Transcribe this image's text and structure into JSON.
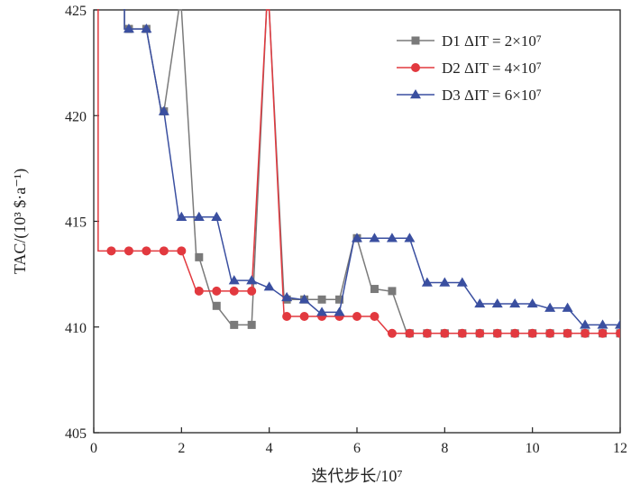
{
  "chart_data": {
    "type": "line",
    "title": "",
    "xlabel": "迭代步长/10⁷",
    "ylabel": "TAC/(10³ $·a⁻¹)",
    "xlim": [
      0,
      12
    ],
    "ylim": [
      405,
      425
    ],
    "xticks": [
      "0",
      "2",
      "4",
      "6",
      "8",
      "10",
      "12"
    ],
    "yticks": [
      "405",
      "410",
      "415",
      "420",
      "425"
    ],
    "legend_position": "top-right",
    "grid": false,
    "series": [
      {
        "name": "D1 ΔIT = 2×10⁷",
        "color": "#7a7a7a",
        "marker": "square",
        "x": [
          0.8,
          1.2,
          1.6,
          2.0,
          2.4,
          2.8,
          3.2,
          3.6,
          4.0,
          4.4,
          4.8,
          5.2,
          5.6,
          6.0,
          6.4,
          6.8,
          7.2,
          7.6,
          8.0,
          8.4,
          8.8,
          9.2,
          9.6,
          10.0,
          10.4,
          10.8,
          11.2,
          11.6,
          12.0
        ],
        "y": [
          424.1,
          424.1,
          420.2,
          425.0,
          413.3,
          411.0,
          410.1,
          410.1,
          425.0,
          411.3,
          411.3,
          411.3,
          411.3,
          414.2,
          411.8,
          411.7,
          409.7,
          409.7,
          409.7,
          409.7,
          409.7,
          409.7,
          409.7,
          409.7,
          409.7,
          409.7,
          409.7,
          409.7,
          409.7
        ]
      },
      {
        "name": "D2 ΔIT = 4×10⁷",
        "color": "#e2393f",
        "marker": "circle",
        "x": [
          0.4,
          0.8,
          1.2,
          1.6,
          2.0,
          2.4,
          2.8,
          3.2,
          3.6,
          4.0,
          4.4,
          4.8,
          5.2,
          5.6,
          6.0,
          6.4,
          6.8,
          7.2,
          7.6,
          8.0,
          8.4,
          8.8,
          9.2,
          9.6,
          10.0,
          10.4,
          10.8,
          11.2,
          11.6,
          12.0
        ],
        "y": [
          413.6,
          413.6,
          413.6,
          413.6,
          413.6,
          411.7,
          411.7,
          411.7,
          411.7,
          425.0,
          410.5,
          410.5,
          410.5,
          410.5,
          410.5,
          410.5,
          409.7,
          409.7,
          409.7,
          409.7,
          409.7,
          409.7,
          409.7,
          409.7,
          409.7,
          409.7,
          409.7,
          409.7,
          409.7,
          409.7
        ]
      },
      {
        "name": "D3 ΔIT = 6×10⁷",
        "color": "#3a4fa0",
        "marker": "triangle",
        "x": [
          0.8,
          1.2,
          1.6,
          2.0,
          2.4,
          2.8,
          3.2,
          3.6,
          4.0,
          4.4,
          4.8,
          5.2,
          5.6,
          6.0,
          6.4,
          6.8,
          7.2,
          7.6,
          8.0,
          8.4,
          8.8,
          9.2,
          9.6,
          10.0,
          10.4,
          10.8,
          11.2,
          11.6,
          12.0
        ],
        "y": [
          424.1,
          424.1,
          420.2,
          415.2,
          415.2,
          415.2,
          412.2,
          412.2,
          411.9,
          411.4,
          411.3,
          410.7,
          410.7,
          414.2,
          414.2,
          414.2,
          414.2,
          412.1,
          412.1,
          412.1,
          411.1,
          411.1,
          411.1,
          411.1,
          410.9,
          410.9,
          410.1,
          410.1,
          410.1
        ]
      }
    ]
  }
}
